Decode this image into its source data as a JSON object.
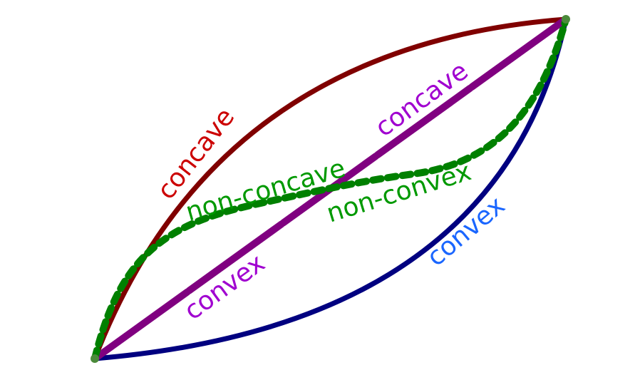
{
  "colors": {
    "concave_curve": "#800000",
    "convex_curve": "#000080",
    "line": "#800080",
    "wavy_curve": "#008000",
    "concave_label": "#cc0000",
    "convex_label": "#1a66ff",
    "line_label": "#a000d0",
    "wavy_label": "#009900"
  },
  "labels": {
    "top_curve": "concave",
    "bottom_curve": "convex",
    "line_upper": "concave",
    "line_lower": "convex",
    "wavy_upper": "non-concave",
    "wavy_lower": "non-convex"
  }
}
